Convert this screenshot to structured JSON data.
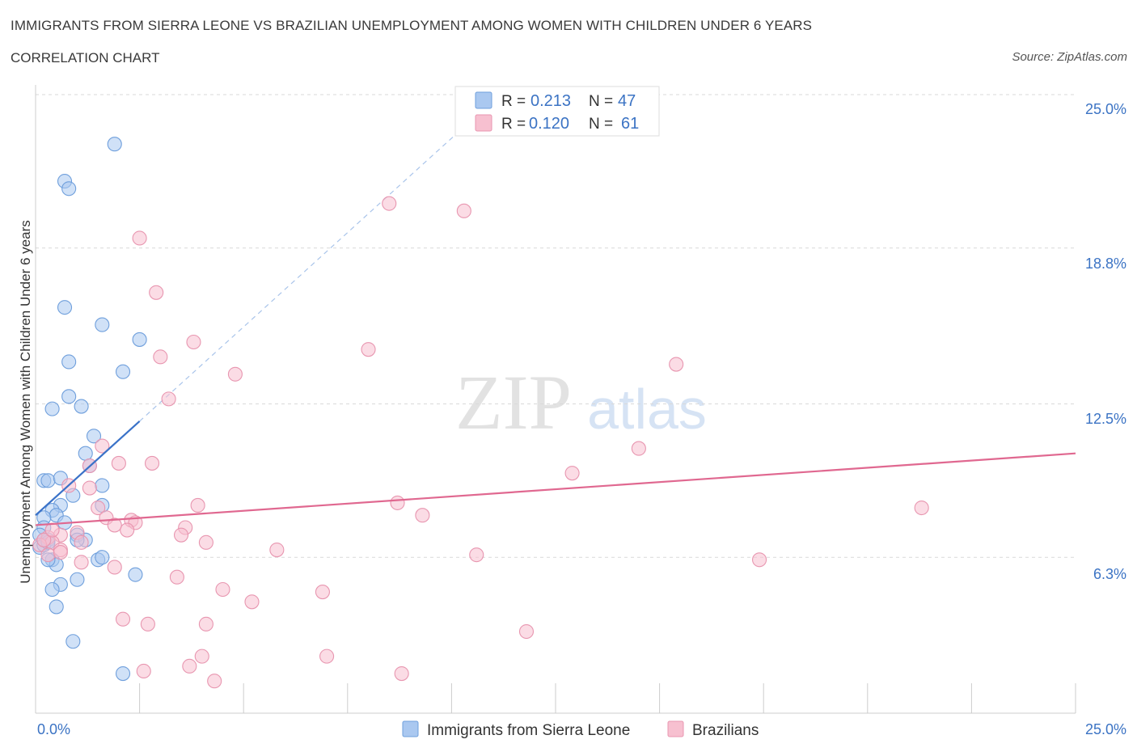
{
  "title": "IMMIGRANTS FROM SIERRA LEONE VS BRAZILIAN UNEMPLOYMENT AMONG WOMEN WITH CHILDREN UNDER 6 YEARS",
  "subtitle": "CORRELATION CHART",
  "source": "Source: ZipAtlas.com",
  "watermark": {
    "zip": "ZIP",
    "atlas": "atlas"
  },
  "colors": {
    "blue_fill": "#aac8f0",
    "blue_stroke": "#6f9fdc",
    "blue_line": "#3a72c8",
    "pink_fill": "#f7c0d0",
    "pink_stroke": "#e896b0",
    "pink_line": "#e06890",
    "axis_label": "#3b73c4",
    "grid": "#d9d9d9"
  },
  "legend": {
    "r_label": "R = ",
    "n_label": "N = ",
    "series": [
      {
        "r": "0.213",
        "n": "47"
      },
      {
        "r": "0.120",
        "n": "61"
      }
    ]
  },
  "chart_data": {
    "type": "scatter",
    "title": "IMMIGRANTS FROM SIERRA LEONE VS BRAZILIAN UNEMPLOYMENT AMONG WOMEN WITH CHILDREN UNDER 6 YEARS",
    "xlabel": "",
    "ylabel": "Unemployment Among Women with Children Under 6 years",
    "xlim": [
      0,
      25
    ],
    "ylim": [
      0,
      25
    ],
    "x_tick_labels": [
      "0.0%",
      "25.0%"
    ],
    "y_tick_labels": [
      "25.0%",
      "18.8%",
      "12.5%",
      "6.3%"
    ],
    "y_ticks": [
      25.0,
      18.8,
      12.5,
      6.3
    ],
    "grid": true,
    "legend_position": "top-center",
    "series": [
      {
        "name": "Immigrants from Sierra Leone",
        "color": "blue",
        "r": 0.213,
        "n": 47,
        "trend": {
          "x": [
            0.0,
            2.5
          ],
          "y": [
            8.0,
            11.8
          ],
          "extension_to": [
            10.5,
            24.0
          ]
        },
        "points": [
          [
            1.9,
            23.0
          ],
          [
            0.7,
            21.5
          ],
          [
            0.8,
            21.2
          ],
          [
            0.7,
            16.4
          ],
          [
            1.6,
            15.7
          ],
          [
            2.5,
            15.1
          ],
          [
            0.8,
            14.2
          ],
          [
            2.1,
            13.8
          ],
          [
            0.8,
            12.8
          ],
          [
            0.4,
            12.3
          ],
          [
            1.1,
            12.4
          ],
          [
            1.4,
            11.2
          ],
          [
            1.2,
            10.5
          ],
          [
            1.3,
            10.0
          ],
          [
            0.2,
            9.4
          ],
          [
            0.3,
            9.4
          ],
          [
            0.6,
            9.5
          ],
          [
            1.6,
            9.2
          ],
          [
            0.9,
            8.8
          ],
          [
            0.6,
            8.4
          ],
          [
            1.6,
            8.4
          ],
          [
            0.4,
            8.2
          ],
          [
            0.5,
            8.0
          ],
          [
            0.2,
            7.9
          ],
          [
            0.7,
            7.7
          ],
          [
            0.2,
            7.5
          ],
          [
            0.1,
            7.2
          ],
          [
            1.0,
            7.2
          ],
          [
            0.2,
            7.0
          ],
          [
            1.2,
            7.0
          ],
          [
            1.0,
            7.0
          ],
          [
            0.3,
            7.0
          ],
          [
            0.1,
            6.7
          ],
          [
            0.4,
            6.2
          ],
          [
            0.5,
            6.0
          ],
          [
            0.3,
            6.2
          ],
          [
            1.5,
            6.2
          ],
          [
            1.6,
            6.3
          ],
          [
            2.4,
            5.6
          ],
          [
            1.0,
            5.4
          ],
          [
            0.6,
            5.2
          ],
          [
            0.4,
            5.0
          ],
          [
            0.5,
            4.3
          ],
          [
            0.9,
            2.9
          ],
          [
            2.1,
            1.6
          ],
          [
            0.2,
            6.8
          ],
          [
            0.3,
            6.9
          ]
        ]
      },
      {
        "name": "Brazilians",
        "color": "pink",
        "r": 0.12,
        "n": 61,
        "trend": {
          "x": [
            0.0,
            25.0
          ],
          "y": [
            7.6,
            10.5
          ]
        },
        "points": [
          [
            8.5,
            20.6
          ],
          [
            10.3,
            20.3
          ],
          [
            2.5,
            19.2
          ],
          [
            2.9,
            17.0
          ],
          [
            3.8,
            15.0
          ],
          [
            8.0,
            14.7
          ],
          [
            15.4,
            14.1
          ],
          [
            3.0,
            14.4
          ],
          [
            4.8,
            13.7
          ],
          [
            3.2,
            12.7
          ],
          [
            14.5,
            10.7
          ],
          [
            1.6,
            10.8
          ],
          [
            1.3,
            10.0
          ],
          [
            2.0,
            10.1
          ],
          [
            2.8,
            10.1
          ],
          [
            12.9,
            9.7
          ],
          [
            1.3,
            9.1
          ],
          [
            0.8,
            9.2
          ],
          [
            8.7,
            8.5
          ],
          [
            3.9,
            8.4
          ],
          [
            1.5,
            8.3
          ],
          [
            9.3,
            8.0
          ],
          [
            21.3,
            8.3
          ],
          [
            2.3,
            7.8
          ],
          [
            2.4,
            7.7
          ],
          [
            1.7,
            7.9
          ],
          [
            3.6,
            7.5
          ],
          [
            2.2,
            7.4
          ],
          [
            3.5,
            7.2
          ],
          [
            1.9,
            7.6
          ],
          [
            1.0,
            7.3
          ],
          [
            0.6,
            7.2
          ],
          [
            0.3,
            7.1
          ],
          [
            0.4,
            6.9
          ],
          [
            1.1,
            6.9
          ],
          [
            0.1,
            6.8
          ],
          [
            0.6,
            6.6
          ],
          [
            4.1,
            6.9
          ],
          [
            5.8,
            6.6
          ],
          [
            10.6,
            6.4
          ],
          [
            17.4,
            6.2
          ],
          [
            1.1,
            6.1
          ],
          [
            1.9,
            5.9
          ],
          [
            0.3,
            6.4
          ],
          [
            0.6,
            6.5
          ],
          [
            3.4,
            5.5
          ],
          [
            4.5,
            5.0
          ],
          [
            6.9,
            4.9
          ],
          [
            5.2,
            4.5
          ],
          [
            2.1,
            3.8
          ],
          [
            2.7,
            3.6
          ],
          [
            4.1,
            3.6
          ],
          [
            11.8,
            3.3
          ],
          [
            4.0,
            2.3
          ],
          [
            7.0,
            2.3
          ],
          [
            3.7,
            1.9
          ],
          [
            2.6,
            1.7
          ],
          [
            8.8,
            1.6
          ],
          [
            4.3,
            1.3
          ],
          [
            0.2,
            7.0
          ],
          [
            0.4,
            7.4
          ]
        ]
      }
    ]
  }
}
